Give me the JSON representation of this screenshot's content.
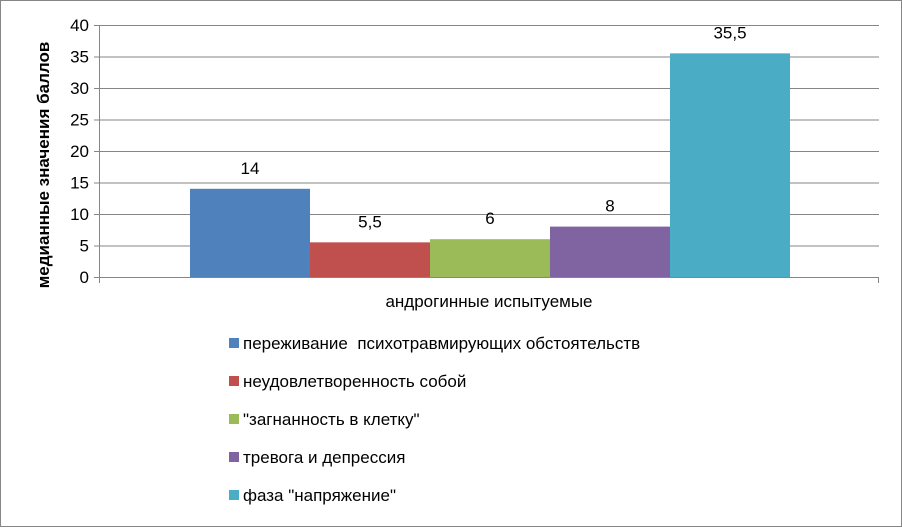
{
  "chart_data": {
    "type": "bar",
    "categories": [
      "андрогинные испытуемые"
    ],
    "series": [
      {
        "name": "переживание  психотравмирующих обстоятельств",
        "values": [
          14
        ],
        "color": "#4F81BD",
        "label": "14"
      },
      {
        "name": "неудовлетворенность собой",
        "values": [
          5.5
        ],
        "color": "#C0504D",
        "label": "5,5"
      },
      {
        "name": "\"загнанность в клетку\"",
        "values": [
          6
        ],
        "color": "#9BBB59",
        "label": "6"
      },
      {
        "name": "тревога и депрессия",
        "values": [
          8
        ],
        "color": "#8064A2",
        "label": "8"
      },
      {
        "name": "фаза \"напряжение\"",
        "values": [
          35.5
        ],
        "color": "#4BACC6",
        "label": "35,5"
      }
    ],
    "xlabel": "",
    "ylabel": "медианные значения баллов",
    "ylim": [
      0,
      40
    ],
    "yticks": [
      0,
      5,
      10,
      15,
      20,
      25,
      30,
      35,
      40
    ],
    "grid": true,
    "legend_position": "bottom"
  }
}
